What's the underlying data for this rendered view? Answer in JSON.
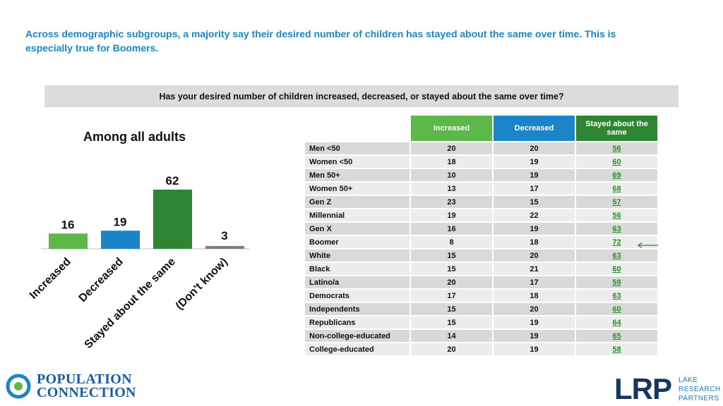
{
  "headline": "Across demographic subgroups, a majority say their desired number of children has stayed about the same over time. This is especially true for Boomers.",
  "question": "Has your desired number of children increased, decreased, or stayed about the same over time?",
  "colors": {
    "increased": "#5cb848",
    "decreased": "#1a85c8",
    "stayed": "#2e8532",
    "dont_know": "#808080",
    "highlight_arrow": "#2e8532"
  },
  "chart_data": [
    {
      "type": "bar",
      "title": "Among all adults",
      "categories": [
        "Increased",
        "Decreased",
        "Stayed about the same",
        "(Don't know)"
      ],
      "values": [
        16,
        19,
        62,
        3
      ],
      "ylim": [
        0,
        62
      ],
      "grid": false,
      "legend": "none"
    },
    {
      "type": "table",
      "columns": [
        "Increased",
        "Decreased",
        "Stayed about the same"
      ],
      "rows": [
        {
          "label": "Men <50",
          "values": [
            20,
            20,
            56
          ]
        },
        {
          "label": "Women <50",
          "values": [
            18,
            19,
            60
          ]
        },
        {
          "label": "Men 50+",
          "values": [
            10,
            19,
            69
          ]
        },
        {
          "label": "Women 50+",
          "values": [
            13,
            17,
            68
          ]
        },
        {
          "label": "Gen Z",
          "values": [
            23,
            15,
            57
          ]
        },
        {
          "label": "Millennial",
          "values": [
            19,
            22,
            56
          ]
        },
        {
          "label": "Gen X",
          "values": [
            16,
            19,
            63
          ]
        },
        {
          "label": "Boomer",
          "values": [
            8,
            18,
            72
          ]
        },
        {
          "label": "White",
          "values": [
            15,
            20,
            63
          ]
        },
        {
          "label": "Black",
          "values": [
            15,
            21,
            60
          ]
        },
        {
          "label": "Latino/a",
          "values": [
            20,
            17,
            59
          ]
        },
        {
          "label": "Democrats",
          "values": [
            17,
            18,
            63
          ]
        },
        {
          "label": "Independents",
          "values": [
            15,
            20,
            60
          ]
        },
        {
          "label": "Republicans",
          "values": [
            15,
            19,
            64
          ]
        },
        {
          "label": "Non-college-educated",
          "values": [
            14,
            19,
            65
          ]
        },
        {
          "label": "College-educated",
          "values": [
            20,
            19,
            58
          ]
        }
      ],
      "highlight_row": "Boomer"
    }
  ],
  "logos": {
    "left_line1": "POPULATION",
    "left_line2": "CONNECTION",
    "right_main": "LRP",
    "right_line1": "LAKE",
    "right_line2": "RESEARCH",
    "right_line3": "PARTNERS"
  }
}
